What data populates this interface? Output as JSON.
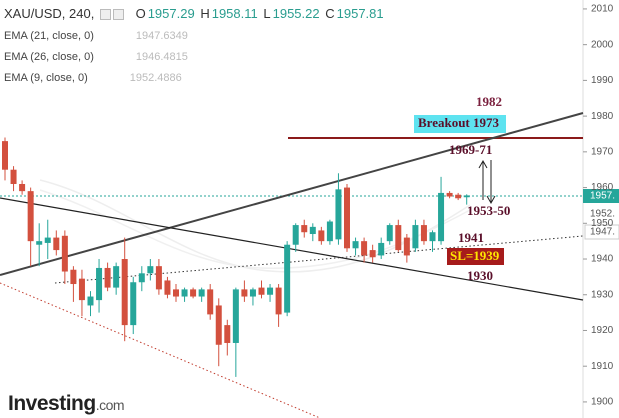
{
  "chart_data": {
    "type": "candlestick",
    "header": {
      "symbol": "XAU/USD, 240,",
      "ohlc": [
        {
          "label": "O",
          "value": 1957.29
        },
        {
          "label": "H",
          "value": 1958.11
        },
        {
          "label": "L",
          "value": 1955.22
        },
        {
          "label": "C",
          "value": 1957.81
        }
      ]
    },
    "indicators": [
      {
        "label": "EMA (21, close, 0)",
        "value": 1947.6349
      },
      {
        "label": "EMA (26, close, 0)",
        "value": 1946.4815
      },
      {
        "label": "EMA (9, close, 0)",
        "value": 1952.4886
      }
    ],
    "open": [
      1973,
      1965,
      1961,
      1959,
      1944,
      1944.5,
      1946,
      1946.5,
      1937,
      1934.5,
      1927,
      1928.5,
      1937.5,
      1932,
      1940,
      1921.5,
      1933.5,
      1936,
      1938,
      1934,
      1931.5,
      1929.5,
      1931.5,
      1929.5,
      1931.5,
      1927,
      1921.5,
      1916.5,
      1931.5,
      1929.5,
      1932,
      1930,
      1932,
      1925,
      1944,
      1949.5,
      1947,
      1948,
      1945,
      1945.5,
      1960,
      1943,
      1945,
      1942.5,
      1941,
      1945,
      1949.5,
      1946,
      1943,
      1949.5,
      1945,
      1945,
      1958.5,
      1958,
      1957.29
    ],
    "high": [
      1974,
      1966,
      1962,
      1960,
      1950,
      1951,
      1948,
      1948,
      1938,
      1937,
      1931,
      1940,
      1939,
      1939,
      1946,
      1935,
      1938,
      1940,
      1940,
      1935,
      1933,
      1932,
      1932,
      1932,
      1933,
      1929,
      1923,
      1932,
      1934,
      1932,
      1934,
      1933,
      1933,
      1945,
      1950,
      1951,
      1950,
      1949,
      1951,
      1964,
      1961,
      1946,
      1946,
      1944,
      1946,
      1950,
      1951,
      1947,
      1951,
      1951,
      1948,
      1963,
      1959,
      1958.5,
      1958.11
    ],
    "low": [
      1962,
      1959,
      1958,
      1938,
      1938,
      1940,
      1941,
      1933,
      1928,
      1924,
      1924,
      1925,
      1931,
      1930,
      1917,
      1919,
      1931,
      1934,
      1930,
      1929,
      1928,
      1928,
      1929,
      1928,
      1923,
      1910,
      1913,
      1907,
      1928,
      1927,
      1929,
      1928,
      1921,
      1924,
      1942,
      1946,
      1945,
      1944,
      1944,
      1944,
      1942,
      1941,
      1939,
      1939,
      1940,
      1944,
      1942,
      1939,
      1942,
      1944,
      1942,
      1944,
      1957,
      1956.5,
      1955.22
    ],
    "close": [
      1965,
      1961,
      1959,
      1945,
      1945,
      1946,
      1942.5,
      1936.5,
      1933,
      1928.5,
      1929.5,
      1937.5,
      1932,
      1938,
      1921.5,
      1933.5,
      1936,
      1938,
      1931.5,
      1930,
      1929.5,
      1931.5,
      1929.5,
      1931.5,
      1924.5,
      1916,
      1916.5,
      1931.5,
      1929.5,
      1931.5,
      1930,
      1932,
      1924.5,
      1944,
      1949.5,
      1947.5,
      1949,
      1945,
      1950.5,
      1959.5,
      1943,
      1945,
      1941,
      1940.5,
      1944.5,
      1949.5,
      1942.5,
      1941,
      1949.5,
      1945,
      1947.5,
      1958.5,
      1957.5,
      1957,
      1957.81
    ],
    "up_color": "#26a69a",
    "down_color": "#d3503e",
    "ylim": [
      1895.5,
      2012.5
    ],
    "yticks": [
      2010,
      2000,
      1990,
      1980,
      1970,
      1960,
      1950,
      1940,
      1930,
      1920,
      1910,
      1900
    ],
    "price_labels": [
      "1957.",
      "1952.",
      "1947."
    ],
    "annotations": [
      "1982",
      "Breakout 1973",
      "1969-71",
      "1953-50",
      "1941",
      "SL=1939",
      "1930"
    ],
    "logo": "Investing",
    "logo_suffix": ".com"
  }
}
